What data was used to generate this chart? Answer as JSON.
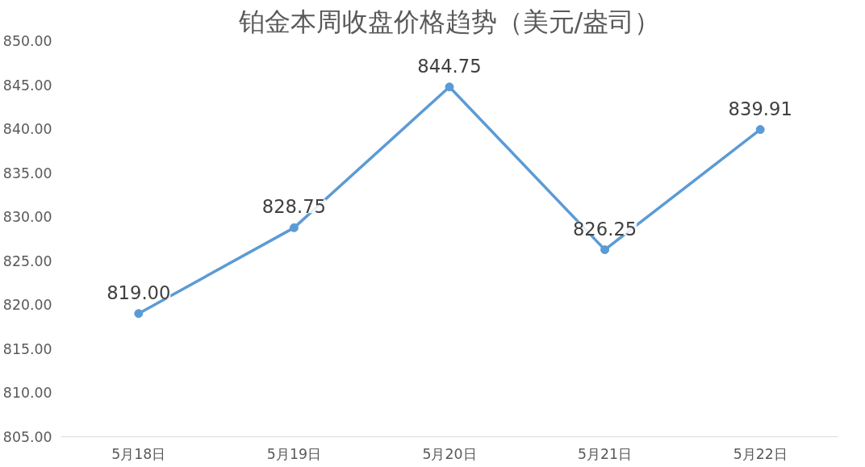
{
  "chart_data": {
    "type": "line",
    "title": "铂金本周收盘价格趋势（美元/盎司）",
    "categories": [
      "5月18日",
      "5月19日",
      "5月20日",
      "5月21日",
      "5月22日"
    ],
    "series": [
      {
        "color": "#5b9bd5",
        "values": [
          819.0,
          828.75,
          844.75,
          826.25,
          839.91
        ]
      }
    ],
    "value_labels": [
      "819.00",
      "828.75",
      "844.75",
      "826.25",
      "839.91"
    ],
    "ylim": [
      805,
      850
    ],
    "yticks": [
      {
        "value": 805,
        "label": "805.00"
      },
      {
        "value": 810,
        "label": "810.00"
      },
      {
        "value": 815,
        "label": "815.00"
      },
      {
        "value": 820,
        "label": "820.00"
      },
      {
        "value": 825,
        "label": "825.00"
      },
      {
        "value": 830,
        "label": "830.00"
      },
      {
        "value": 835,
        "label": "835.00"
      },
      {
        "value": 840,
        "label": "840.00"
      },
      {
        "value": 845,
        "label": "845.00"
      },
      {
        "value": 850,
        "label": "850.00"
      }
    ],
    "grid": false,
    "marker": "circle",
    "line_style": "solid"
  }
}
